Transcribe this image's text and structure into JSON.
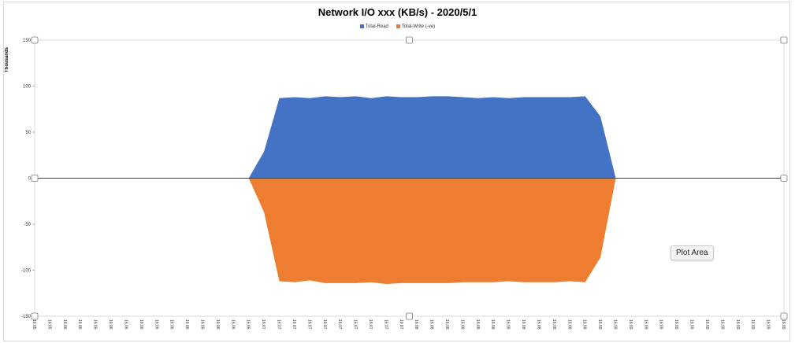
{
  "chart_data": {
    "type": "area",
    "title": "Network I/O xxx (KB/s) - 2020/5/1",
    "xlabel": "",
    "ylabel": "Thousands",
    "ylim": [
      -150,
      150
    ],
    "yticks": [
      150,
      100,
      50,
      0,
      -50,
      -100,
      -150
    ],
    "grid": false,
    "legend_position": "top",
    "x": [
      "16:05",
      "16:05",
      "16:06",
      "16:06",
      "16:06",
      "16:06",
      "16:06",
      "16:06",
      "16:06",
      "16:06",
      "16:06",
      "16:06",
      "16:06",
      "16:06",
      "16:06",
      "16:07",
      "16:07",
      "16:07",
      "16:07",
      "16:07",
      "16:07",
      "16:07",
      "16:07",
      "16:07",
      "16:07",
      "16:08",
      "16:08",
      "16:08",
      "16:08",
      "16:08",
      "16:08",
      "16:08",
      "16:08",
      "16:08",
      "16:08",
      "16:08",
      "16:08",
      "16:09",
      "16:09",
      "16:09",
      "16:09",
      "16:09",
      "16:09",
      "16:09",
      "16:09",
      "16:09",
      "16:09",
      "16:09",
      "16:09",
      "16:09"
    ],
    "series": [
      {
        "name": "Total-Read",
        "color": "#4472c4",
        "values": [
          0,
          0,
          0,
          0,
          0,
          0,
          0,
          0,
          0,
          0,
          0,
          0,
          0,
          0,
          0,
          29,
          87,
          88,
          87,
          89,
          88,
          89,
          87,
          89,
          88,
          88,
          89,
          89,
          88,
          87,
          88,
          87,
          88,
          88,
          88,
          88,
          89,
          67,
          0,
          0,
          0,
          0,
          0,
          0,
          0,
          0,
          0,
          0,
          0,
          0
        ]
      },
      {
        "name": "Total-Write (-ve)",
        "color": "#ed7d31",
        "values": [
          0,
          0,
          0,
          0,
          0,
          0,
          0,
          0,
          0,
          0,
          0,
          0,
          0,
          0,
          0,
          -37,
          -112,
          -113,
          -111,
          -114,
          -114,
          -114,
          -113,
          -115,
          -114,
          -114,
          -114,
          -114,
          -113,
          -113,
          -113,
          -112,
          -113,
          -113,
          -113,
          -112,
          -113,
          -86,
          0,
          0,
          0,
          0,
          0,
          0,
          0,
          0,
          0,
          0,
          0,
          0
        ]
      }
    ]
  },
  "tooltip": {
    "label": "Plot Area"
  }
}
